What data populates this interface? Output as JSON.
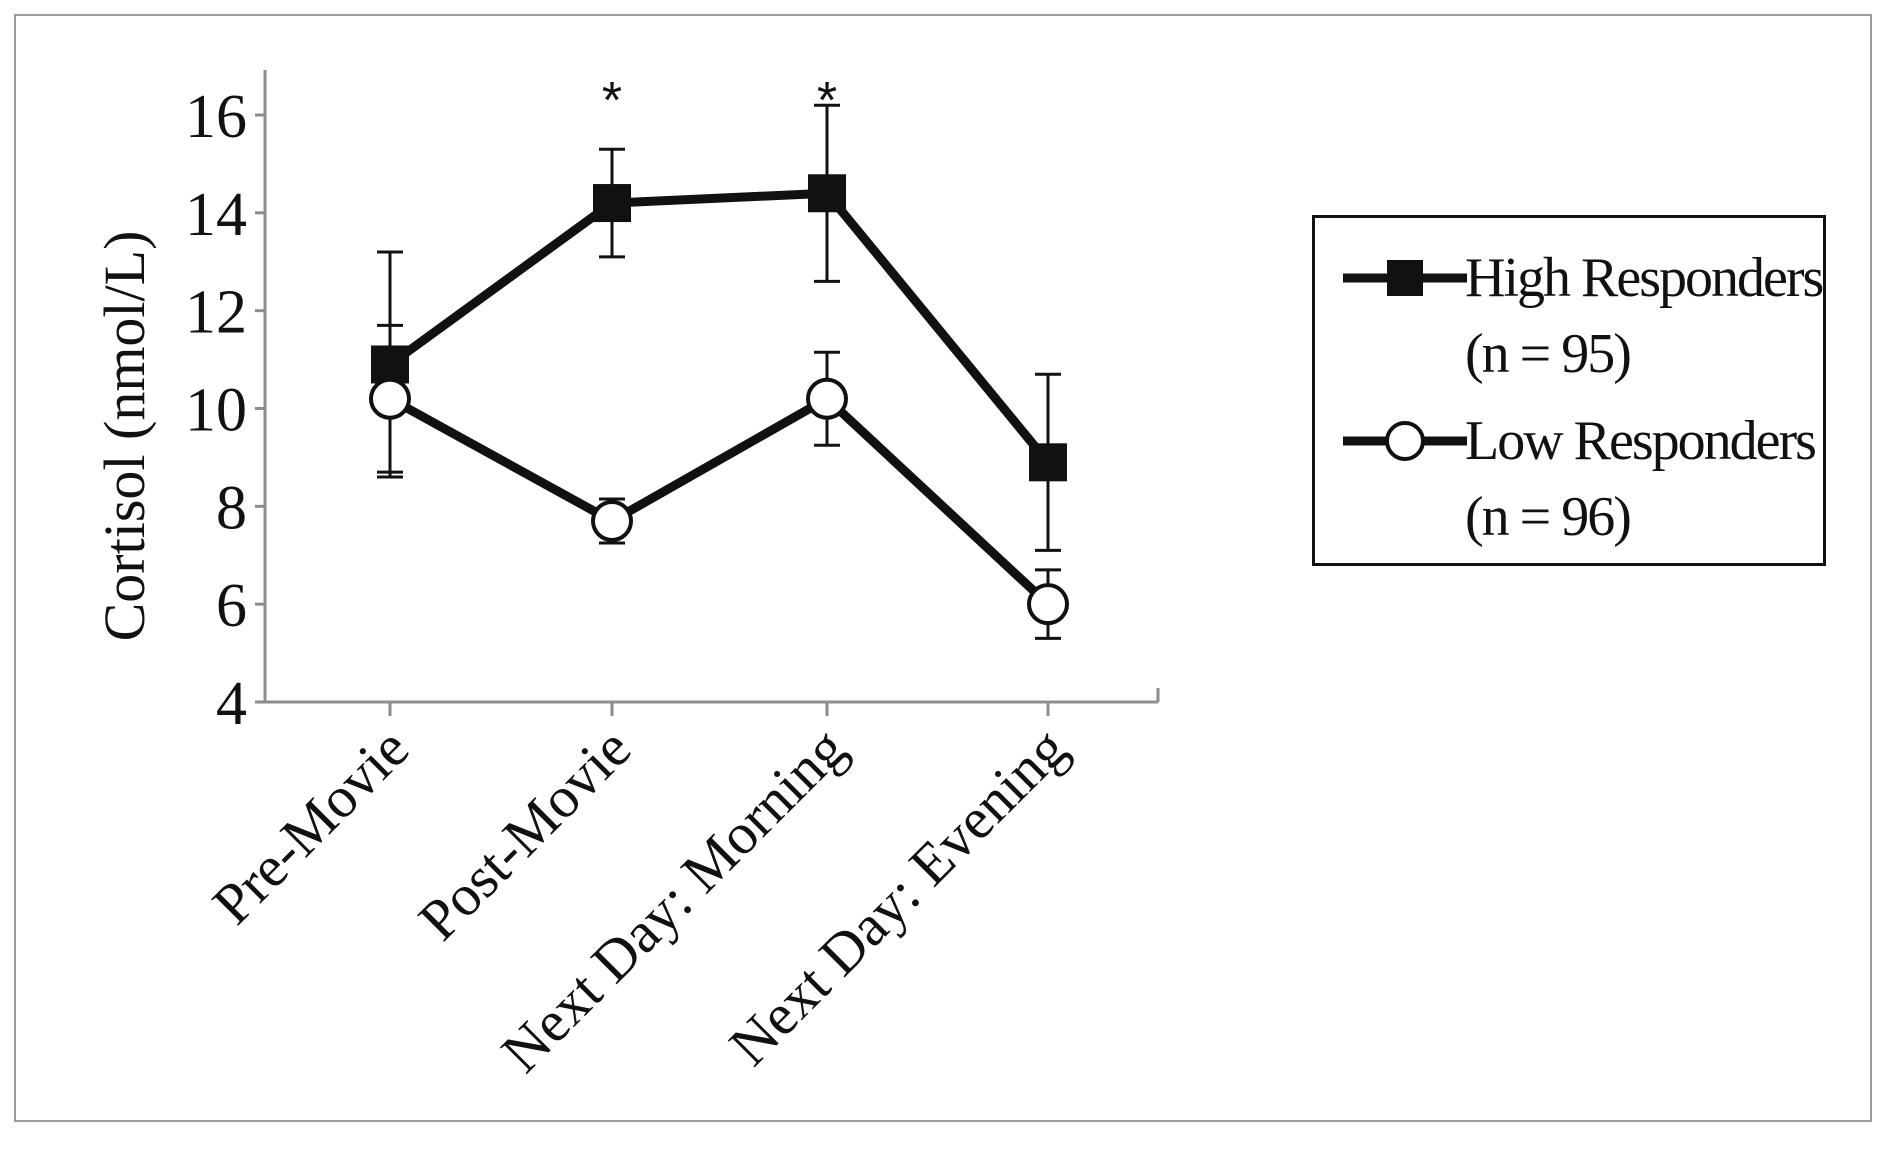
{
  "chart_data": {
    "type": "line",
    "title": "",
    "xlabel": "",
    "ylabel": "Cortisol (nmol/L)",
    "ylim": [
      4,
      17
    ],
    "yticks": [
      4,
      6,
      8,
      10,
      12,
      14,
      16
    ],
    "categories": [
      "Pre-Movie",
      "Post-Movie",
      "Next Day: Morning",
      "Next Day: Evening"
    ],
    "series": [
      {
        "name": "High Responders",
        "name_detail": "(n = 95)",
        "marker": "filled-square",
        "values": [
          10.9,
          14.2,
          14.4,
          8.9
        ],
        "error": [
          2.3,
          1.1,
          1.8,
          1.8
        ]
      },
      {
        "name": "Low Responders",
        "name_detail": "(n = 96)",
        "marker": "open-circle",
        "values": [
          10.2,
          7.7,
          10.2,
          6.0
        ],
        "error": [
          1.5,
          0.45,
          0.95,
          0.7
        ]
      }
    ],
    "annotations": [
      {
        "category": "Post-Movie",
        "text": "*"
      },
      {
        "category": "Next Day: Morning",
        "text": "*"
      }
    ],
    "grid": false,
    "legend_position": "right"
  },
  "colors": {
    "line": "#111111",
    "axis": "#8c8c8c",
    "marker_fill_open": "#ffffff",
    "marker_fill_solid": "#111111"
  }
}
